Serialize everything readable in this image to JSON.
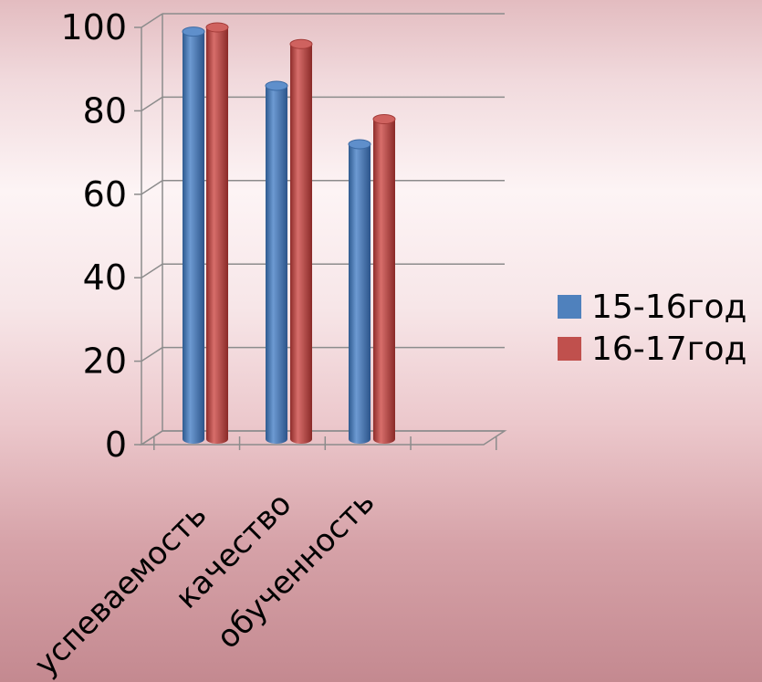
{
  "chart_data": {
    "type": "bar",
    "title": "",
    "xlabel": "",
    "ylabel": "",
    "categories": [
      "успеваемость",
      "качество",
      "обученность"
    ],
    "series": [
      {
        "name": "15-16год",
        "values": [
          99,
          86,
          72
        ],
        "color": "#4f81bd"
      },
      {
        "name": "16-17год",
        "values": [
          100,
          96,
          78
        ],
        "color": "#c0504d"
      }
    ],
    "ylim": [
      0,
      100
    ],
    "yticks": [
      "0",
      "20",
      "40",
      "60",
      "80",
      "100"
    ],
    "grid": true,
    "legend_position": "right",
    "style": "3d-cylinder"
  }
}
